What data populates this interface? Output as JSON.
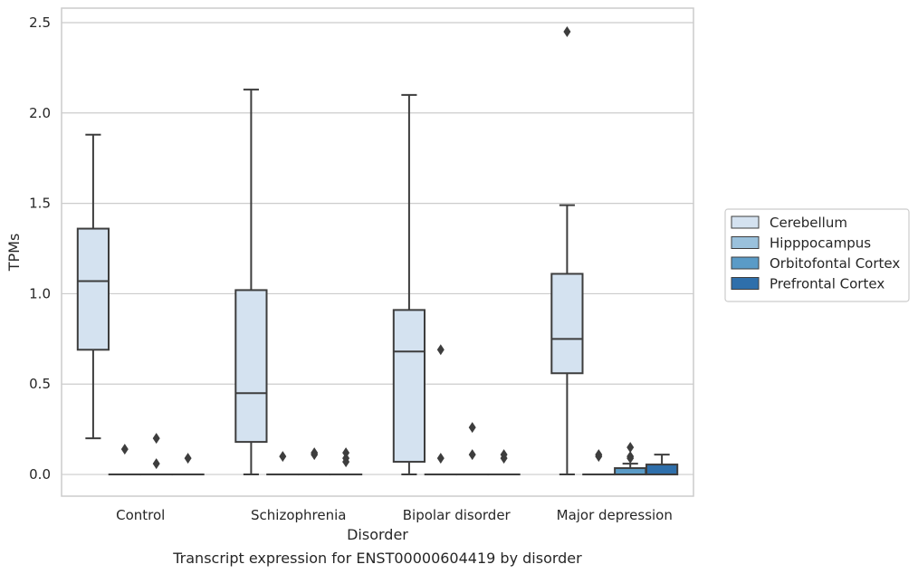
{
  "caption": "Transcript expression for ENST00000604419 by disorder",
  "chart_data": {
    "type": "box",
    "xlabel": "Disorder",
    "ylabel": "TPMs",
    "ylim": [
      -0.12,
      2.58
    ],
    "yticks": [
      0.0,
      0.5,
      1.0,
      1.5,
      2.0,
      2.5
    ],
    "ytick_labels": [
      "0.0",
      "0.5",
      "1.0",
      "1.5",
      "2.0",
      "2.5"
    ],
    "categories": [
      "Control",
      "Schizophrenia",
      "Bipolar disorder",
      "Major depression"
    ],
    "grid": true,
    "legend_position": "right",
    "series": [
      {
        "name": "Cerebellum",
        "color": "#d4e2f0",
        "boxes": [
          {
            "whislo": 0.2,
            "q1": 0.69,
            "med": 1.07,
            "q3": 1.36,
            "whishi": 1.88,
            "fliers": []
          },
          {
            "whislo": 0.0,
            "q1": 0.18,
            "med": 0.45,
            "q3": 1.02,
            "whishi": 2.13,
            "fliers": []
          },
          {
            "whislo": 0.0,
            "q1": 0.07,
            "med": 0.68,
            "q3": 0.91,
            "whishi": 2.1,
            "fliers": []
          },
          {
            "whislo": 0.0,
            "q1": 0.56,
            "med": 0.75,
            "q3": 1.11,
            "whishi": 1.49,
            "fliers": [
              2.45
            ]
          }
        ]
      },
      {
        "name": "Hipppocampus",
        "color": "#9ac1dc",
        "boxes": [
          {
            "whislo": 0.0,
            "q1": 0.0,
            "med": 0.0,
            "q3": 0.0,
            "whishi": 0.0,
            "fliers": [
              0.14
            ]
          },
          {
            "whislo": 0.0,
            "q1": 0.0,
            "med": 0.0,
            "q3": 0.0,
            "whishi": 0.0,
            "fliers": [
              0.1
            ]
          },
          {
            "whislo": 0.0,
            "q1": 0.0,
            "med": 0.0,
            "q3": 0.0,
            "whishi": 0.0,
            "fliers": [
              0.69,
              0.09
            ]
          },
          {
            "whislo": 0.0,
            "q1": 0.0,
            "med": 0.0,
            "q3": 0.0,
            "whishi": 0.0,
            "fliers": [
              0.1,
              0.11
            ]
          }
        ]
      },
      {
        "name": "Orbitofontal Cortex",
        "color": "#5a9bc7",
        "boxes": [
          {
            "whislo": 0.0,
            "q1": 0.0,
            "med": 0.0,
            "q3": 0.0,
            "whishi": 0.0,
            "fliers": [
              0.2,
              0.06
            ]
          },
          {
            "whislo": 0.0,
            "q1": 0.0,
            "med": 0.0,
            "q3": 0.0,
            "whishi": 0.0,
            "fliers": [
              0.11,
              0.12
            ]
          },
          {
            "whislo": 0.0,
            "q1": 0.0,
            "med": 0.0,
            "q3": 0.0,
            "whishi": 0.0,
            "fliers": [
              0.26,
              0.11
            ]
          },
          {
            "whislo": 0.0,
            "q1": 0.0,
            "med": 0.0,
            "q3": 0.035,
            "whishi": 0.06,
            "fliers": [
              0.15,
              0.1,
              0.09
            ]
          }
        ]
      },
      {
        "name": "Prefrontal Cortex",
        "color": "#2e6fab",
        "boxes": [
          {
            "whislo": 0.0,
            "q1": 0.0,
            "med": 0.0,
            "q3": 0.0,
            "whishi": 0.0,
            "fliers": [
              0.09
            ]
          },
          {
            "whislo": 0.0,
            "q1": 0.0,
            "med": 0.0,
            "q3": 0.0,
            "whishi": 0.0,
            "fliers": [
              0.12,
              0.09,
              0.07
            ]
          },
          {
            "whislo": 0.0,
            "q1": 0.0,
            "med": 0.0,
            "q3": 0.0,
            "whishi": 0.0,
            "fliers": [
              0.11,
              0.09
            ]
          },
          {
            "whislo": 0.0,
            "q1": 0.0,
            "med": 0.0,
            "q3": 0.055,
            "whishi": 0.11,
            "fliers": []
          }
        ]
      }
    ]
  }
}
